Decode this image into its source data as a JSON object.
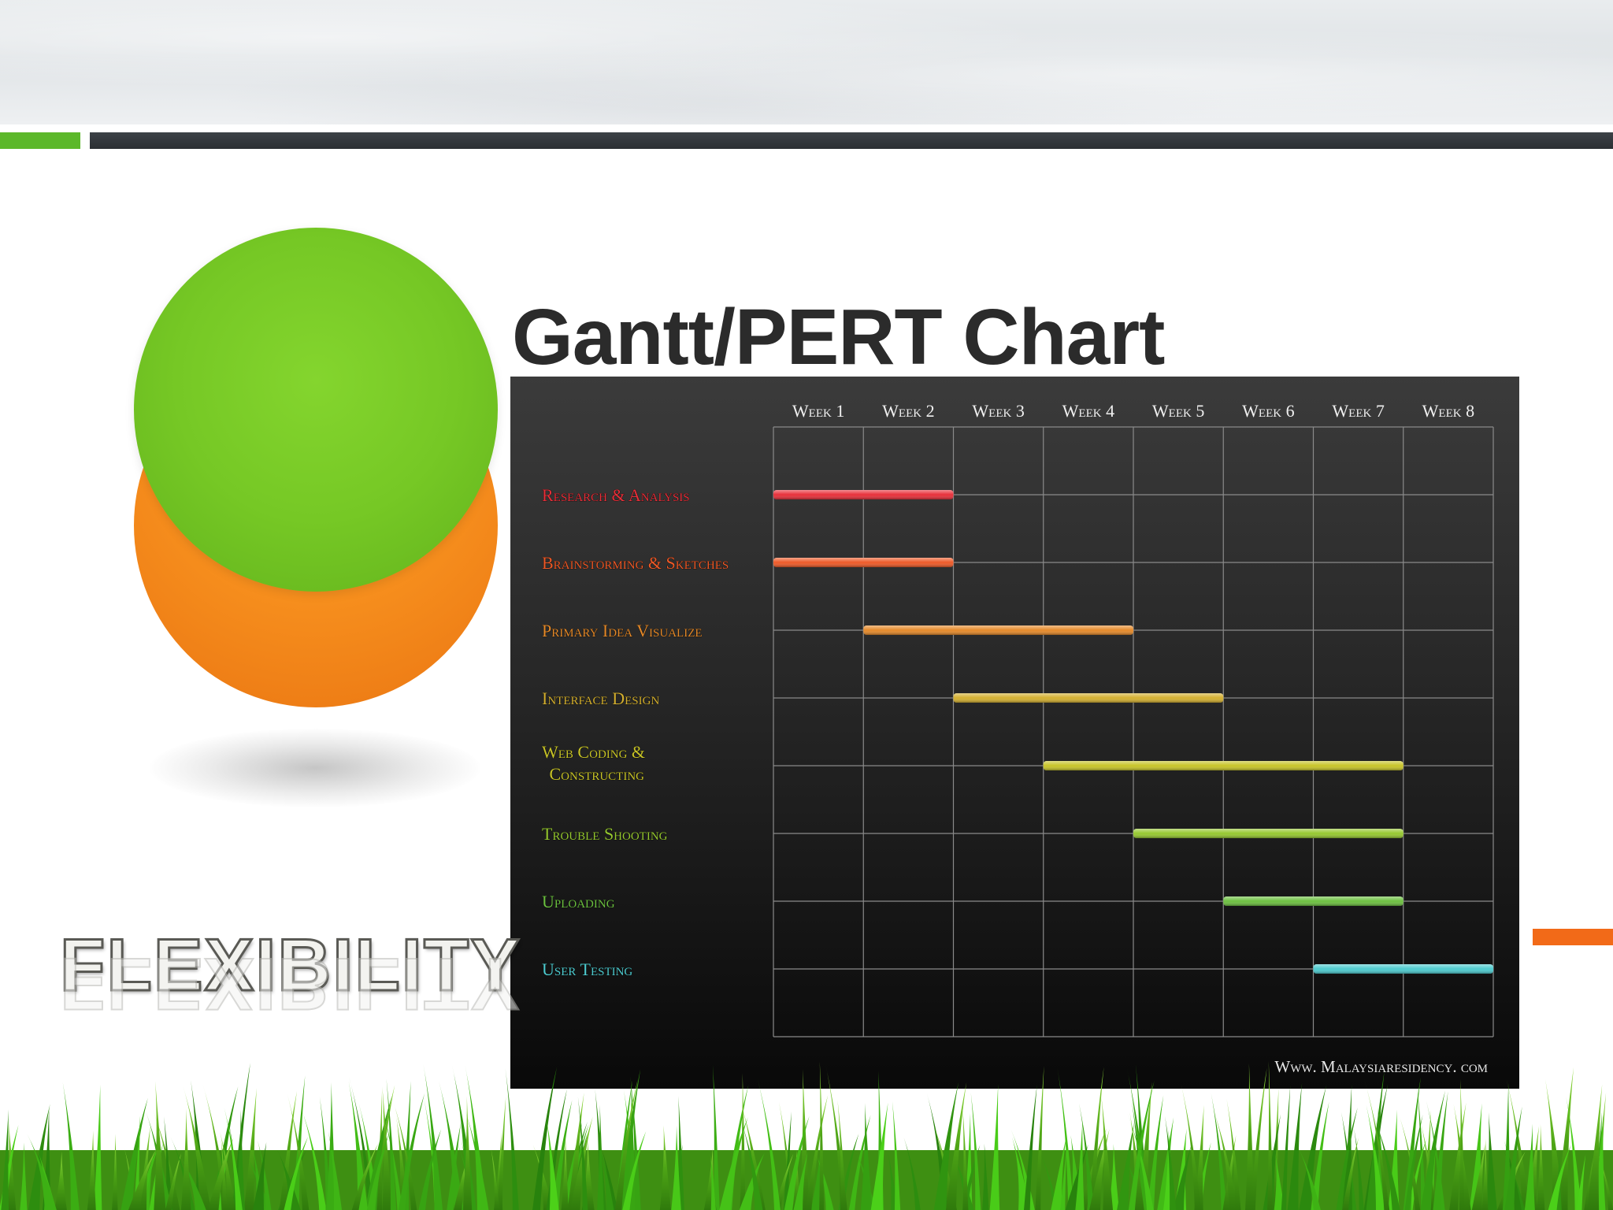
{
  "slide": {
    "title": "Gantt/PERT Chart",
    "flex_word": "FLEXIBILITY"
  },
  "colors": {
    "accent_green": "#5cb82a",
    "accent_orange": "#f26a18",
    "dark_bar": "#33383c"
  },
  "chart_data": {
    "type": "gantt",
    "title": "",
    "weeks": [
      "Week 1",
      "Week 2",
      "Week 3",
      "Week 4",
      "Week 5",
      "Week 6",
      "Week 7",
      "Week 8"
    ],
    "tasks": [
      {
        "name": "Research & Analysis",
        "start_week": 1,
        "end_week": 2,
        "color": "#e8303a"
      },
      {
        "name": "Brainstorming & Sketches",
        "start_week": 1,
        "end_week": 2,
        "color": "#ee5a28"
      },
      {
        "name": "Primary Idea Visualize",
        "start_week": 2,
        "end_week": 4,
        "color": "#e58a2a"
      },
      {
        "name": "Interface Design",
        "start_week": 3,
        "end_week": 5,
        "color": "#d4b030"
      },
      {
        "name": "Web Coding & Constructing",
        "start_week": 4,
        "end_week": 7,
        "color": "#c8c428"
      },
      {
        "name": "Trouble Shooting",
        "start_week": 5,
        "end_week": 7,
        "color": "#96c830"
      },
      {
        "name": "Uploading",
        "start_week": 6,
        "end_week": 7,
        "color": "#6cc040"
      },
      {
        "name": "User Testing",
        "start_week": 7,
        "end_week": 8,
        "color": "#4ecbcf"
      }
    ],
    "grid": true,
    "source": "Www. Malaysiaresidency. com"
  }
}
